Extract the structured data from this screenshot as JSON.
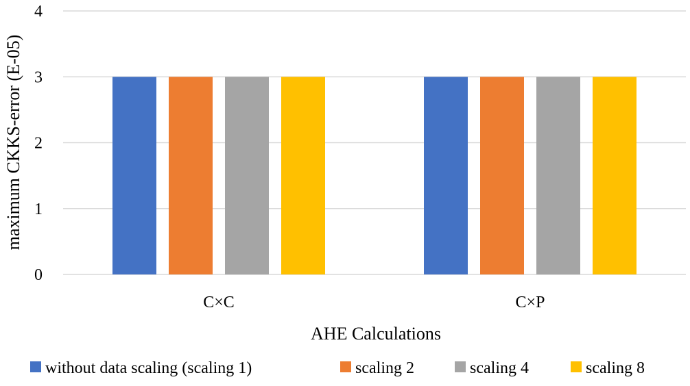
{
  "chart_data": {
    "type": "bar",
    "title": "",
    "xlabel": "AHE Calculations",
    "ylabel": "maximum CKKS-error (E-05)",
    "categories": [
      "C×C",
      "C×P"
    ],
    "ylim": [
      0,
      4
    ],
    "yticks": [
      "0",
      "1",
      "2",
      "3",
      "4"
    ],
    "grid": true,
    "legend_position": "bottom",
    "series": [
      {
        "name": "without data scaling (scaling 1)",
        "values": [
          3,
          3
        ],
        "color": "#4472C4"
      },
      {
        "name": "scaling 2",
        "values": [
          3,
          3
        ],
        "color": "#ED7D31"
      },
      {
        "name": "scaling 4",
        "values": [
          3,
          3
        ],
        "color": "#A5A5A5"
      },
      {
        "name": "scaling 8",
        "values": [
          3,
          3
        ],
        "color": "#FFC000"
      }
    ]
  }
}
